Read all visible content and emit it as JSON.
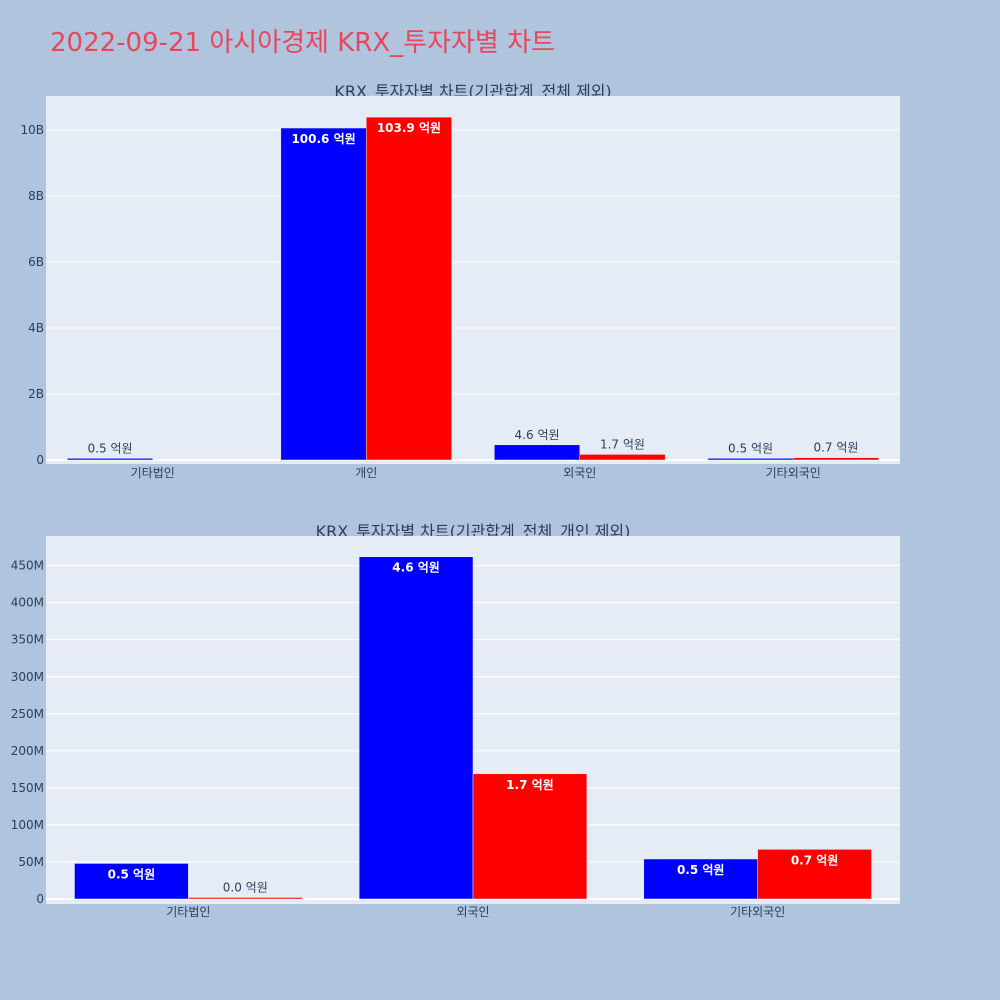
{
  "page_title": "2022-09-21 아시아경제 KRX_투자자별 차트",
  "colors": {
    "background": "#b0c4de",
    "plot_bg": "#e5ecf6",
    "title": "#e6475c",
    "series_a": "#0000ff",
    "series_b": "#ff0000"
  },
  "chart_data": [
    {
      "type": "bar",
      "title": "KRX_투자자별 차트(기관합계_전체 제외)",
      "categories": [
        "기타법인",
        "개인",
        "외국인",
        "기타외국인"
      ],
      "ylim": [
        0,
        11000000000
      ],
      "yticks": [
        0,
        2000000000,
        4000000000,
        6000000000,
        8000000000,
        10000000000
      ],
      "ytick_labels": [
        "0",
        "2B",
        "4B",
        "6B",
        "8B",
        "10B"
      ],
      "series": [
        {
          "color": "#0000ff",
          "values": [
            50000000,
            10060000000,
            460000000,
            50000000
          ],
          "labels": [
            "0.5 억원",
            "100.6 억원",
            "4.6 억원",
            "0.5 억원"
          ]
        },
        {
          "color": "#ff0000",
          "values": [
            null,
            10390000000,
            170000000,
            70000000
          ],
          "labels": [
            "",
            "103.9 억원",
            "1.7 억원",
            "0.7 억원"
          ]
        }
      ],
      "grid": true
    },
    {
      "type": "bar",
      "title": "KRX_투자자별 차트(기관합계_전체_개인 제외)",
      "categories": [
        "기타법인",
        "외국인",
        "기타외국인"
      ],
      "ylim": [
        0,
        490000000
      ],
      "yticks": [
        0,
        50000000,
        100000000,
        150000000,
        200000000,
        250000000,
        300000000,
        350000000,
        400000000,
        450000000
      ],
      "ytick_labels": [
        "0",
        "50M",
        "100M",
        "150M",
        "200M",
        "250M",
        "300M",
        "350M",
        "400M",
        "450M"
      ],
      "series": [
        {
          "color": "#0000ff",
          "values": [
            48000000,
            462000000,
            54000000
          ],
          "labels": [
            "0.5 억원",
            "4.6 억원",
            "0.5 억원"
          ]
        },
        {
          "color": "#ff0000",
          "values": [
            1000000,
            169000000,
            67000000
          ],
          "labels": [
            "0.0 억원",
            "1.7 억원",
            "0.7 억원"
          ]
        }
      ],
      "grid": true
    }
  ]
}
